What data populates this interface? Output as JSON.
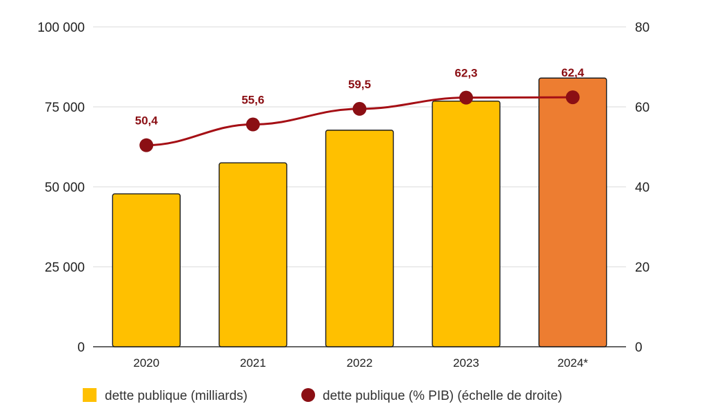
{
  "chart_data": {
    "type": "bar",
    "categories": [
      "2020",
      "2021",
      "2022",
      "2023",
      "2024*"
    ],
    "series": [
      {
        "name": "dette publique (milliards)",
        "kind": "bar",
        "axis": "left",
        "values": [
          47800,
          57500,
          67700,
          76800,
          84000
        ],
        "colors": [
          "#ffc000",
          "#ffc000",
          "#ffc000",
          "#ffc000",
          "#ed7d31"
        ]
      },
      {
        "name": "dette publique (% PIB) (échelle de droite)",
        "kind": "line",
        "axis": "right",
        "values": [
          50.4,
          55.6,
          59.5,
          62.3,
          62.4
        ],
        "labels": [
          "50,4",
          "55,6",
          "59,5",
          "62,3",
          "62,4"
        ],
        "color": "#a50f15"
      }
    ],
    "left_axis": {
      "ylim": [
        0,
        100000
      ],
      "ticks": [
        0,
        25000,
        50000,
        75000,
        100000
      ],
      "tick_labels": [
        "0",
        "25 000",
        "50 000",
        "75 000",
        "100 000"
      ]
    },
    "right_axis": {
      "ylim": [
        0,
        80
      ],
      "ticks": [
        0,
        20,
        40,
        60,
        80
      ],
      "tick_labels": [
        "0",
        "20",
        "40",
        "60",
        "80"
      ]
    },
    "grid": true,
    "legend_position": "bottom",
    "legend": [
      {
        "label": "dette publique (milliards)",
        "marker": "square",
        "color": "#ffc000"
      },
      {
        "label": "dette publique (% PIB) (échelle de droite)",
        "marker": "circle",
        "color": "#8b0f14"
      }
    ]
  }
}
